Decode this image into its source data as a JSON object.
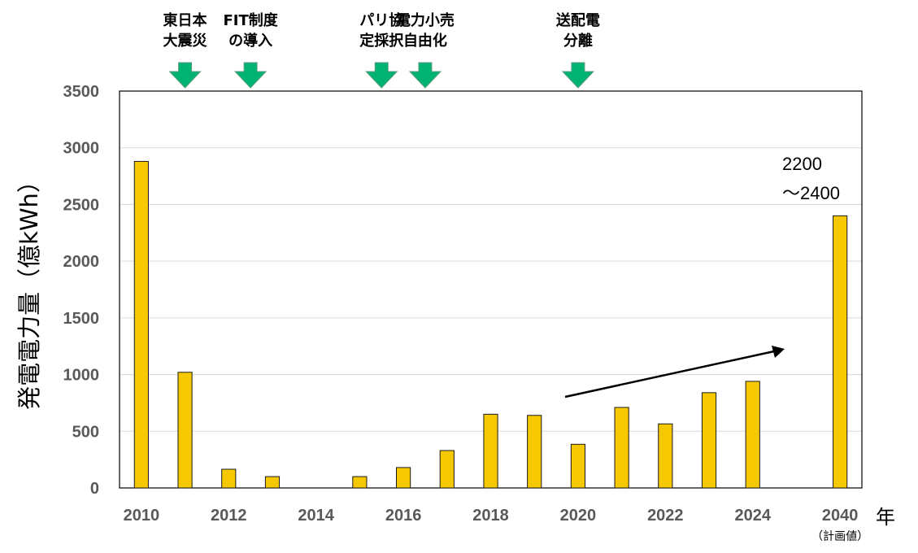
{
  "chart_data": {
    "type": "bar",
    "ylabel": "発電電力量（億kWh）",
    "xunit": "年",
    "ylim": [
      0,
      3500
    ],
    "yticks": [
      0,
      500,
      1000,
      1500,
      2000,
      2500,
      3000,
      3500
    ],
    "categories": [
      "2010",
      "2011",
      "2012",
      "2013",
      "2014",
      "2015",
      "2016",
      "2017",
      "2018",
      "2019",
      "2020",
      "2021",
      "2022",
      "2023",
      "2024",
      "2025",
      "2040"
    ],
    "values": [
      2880,
      1020,
      165,
      100,
      null,
      100,
      180,
      330,
      650,
      640,
      385,
      710,
      565,
      840,
      940,
      null,
      2400
    ],
    "xtick_labels": [
      "2010",
      "2012",
      "2014",
      "2016",
      "2018",
      "2020",
      "2022",
      "2024",
      "2040"
    ],
    "last_bar_note": "（計画値）",
    "last_bar_annotation": [
      "2200",
      "～2400"
    ],
    "bar_color": "#f5c800",
    "grid": "horizontal",
    "trend_arrow": true,
    "events": [
      {
        "lines": [
          "東日本",
          "大震災"
        ],
        "year": 2011
      },
      {
        "lines": [
          "FIT制度",
          "の導入"
        ],
        "year": 2012.5
      },
      {
        "lines": [
          "パリ協",
          "定採択"
        ],
        "year": 2015.5
      },
      {
        "lines": [
          "電力小売",
          "自由化"
        ],
        "year": 2016.5
      },
      {
        "lines": [
          "送配電",
          "分離"
        ],
        "year": 2020
      }
    ],
    "event_arrow_color": "#00b374"
  }
}
